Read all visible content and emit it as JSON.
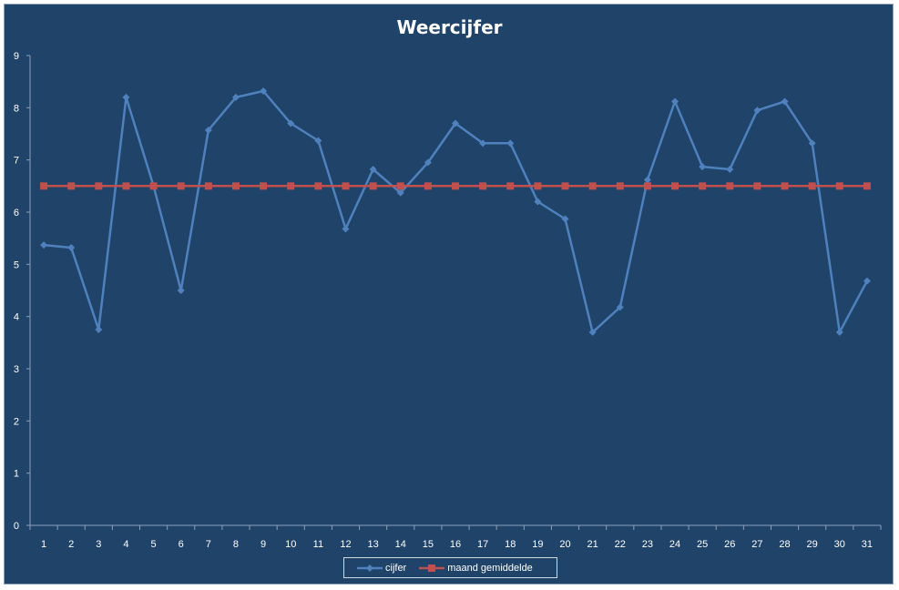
{
  "chart_data": {
    "type": "line",
    "title": "Weercijfer",
    "xlabel": "",
    "ylabel": "",
    "categories": [
      "1",
      "2",
      "3",
      "4",
      "5",
      "6",
      "7",
      "8",
      "9",
      "10",
      "11",
      "12",
      "13",
      "14",
      "15",
      "16",
      "17",
      "18",
      "19",
      "20",
      "21",
      "22",
      "23",
      "24",
      "25",
      "26",
      "27",
      "28",
      "29",
      "30",
      "31"
    ],
    "ylim": [
      0,
      9
    ],
    "yticks": [
      "0",
      "1",
      "2",
      "3",
      "4",
      "5",
      "6",
      "7",
      "8",
      "9"
    ],
    "grid": false,
    "legend_position": "bottom",
    "series": [
      {
        "name": "cijfer",
        "color": "#4F81BD",
        "marker": "diamond",
        "values": [
          5.37,
          5.32,
          3.75,
          8.2,
          6.5,
          4.5,
          7.57,
          8.2,
          8.32,
          7.7,
          7.37,
          5.68,
          6.82,
          6.37,
          6.95,
          7.7,
          7.32,
          7.32,
          6.2,
          5.87,
          3.7,
          4.18,
          6.62,
          8.12,
          6.87,
          6.82,
          7.95,
          8.12,
          7.32,
          3.7,
          4.68
        ]
      },
      {
        "name": "maand gemiddelde",
        "color": "#C0504D",
        "marker": "square",
        "values": [
          6.5,
          6.5,
          6.5,
          6.5,
          6.5,
          6.5,
          6.5,
          6.5,
          6.5,
          6.5,
          6.5,
          6.5,
          6.5,
          6.5,
          6.5,
          6.5,
          6.5,
          6.5,
          6.5,
          6.5,
          6.5,
          6.5,
          6.5,
          6.5,
          6.5,
          6.5,
          6.5,
          6.5,
          6.5,
          6.5,
          6.5
        ]
      }
    ],
    "background_color": "#1F4369",
    "axis_color": "#8EA2BA"
  }
}
